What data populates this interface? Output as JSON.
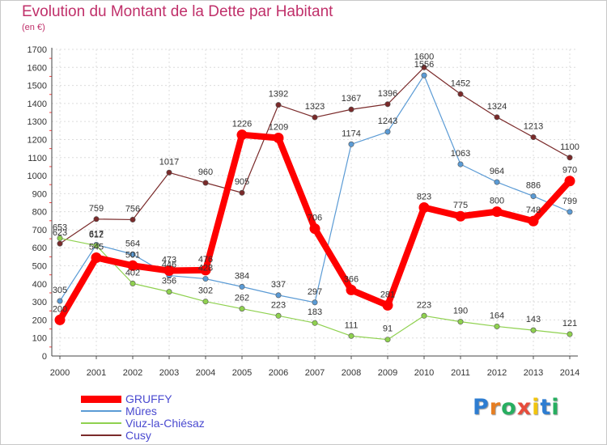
{
  "title": "Evolution du Montant de la Dette par Habitant",
  "subtitle": "(en €)",
  "logo": {
    "text": "Proxiti",
    "letters": [
      "P",
      "r",
      "o",
      "x",
      "i",
      "t",
      "i"
    ],
    "colors": [
      "#2e7dd1",
      "#e67e22",
      "#27ae60",
      "#e74c3c",
      "#f1c40f",
      "#2e7dd1",
      "#27ae60"
    ]
  },
  "chart_data": {
    "type": "line",
    "title": "Evolution du Montant de la Dette par Habitant",
    "subtitle": "(en €)",
    "x": [
      2000,
      2001,
      2002,
      2003,
      2004,
      2005,
      2006,
      2007,
      2008,
      2009,
      2010,
      2011,
      2012,
      2013,
      2014
    ],
    "ylim": [
      0,
      1700
    ],
    "yticks": [
      0,
      100,
      200,
      300,
      400,
      500,
      600,
      700,
      800,
      900,
      1000,
      1100,
      1200,
      1300,
      1400,
      1500,
      1600,
      1700
    ],
    "grid": true,
    "legend_position": "bottom-left",
    "series": [
      {
        "name": "GRUFFY",
        "color": "#ff0000",
        "values": [
          200,
          545,
          501,
          473,
          476,
          1226,
          1209,
          706,
          366,
          281,
          823,
          775,
          800,
          748,
          970
        ]
      },
      {
        "name": "Mûres",
        "color": "#5b9bd5",
        "values": [
          305,
          617,
          564,
          446,
          428,
          384,
          337,
          297,
          1174,
          1243,
          1556,
          1063,
          964,
          886,
          799
        ]
      },
      {
        "name": "Viuz-la-Chiésaz",
        "color": "#8fd14f",
        "values": [
          653,
          612,
          402,
          356,
          302,
          262,
          223,
          183,
          111,
          91,
          223,
          190,
          164,
          143,
          121
        ]
      },
      {
        "name": "Cusy",
        "color": "#7a2a2a",
        "values": [
          623,
          759,
          756,
          1017,
          960,
          905,
          1392,
          1323,
          1367,
          1396,
          1600,
          1452,
          1324,
          1213,
          1100
        ]
      }
    ]
  }
}
